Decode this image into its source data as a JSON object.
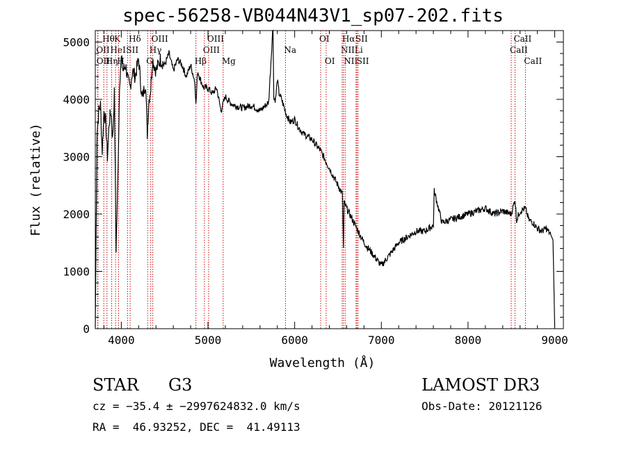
{
  "chart_data": {
    "type": "line",
    "title": "spec-56258-VB044N43V1_sp07-202.fits",
    "xlabel": "Wavelength (Å)",
    "ylabel": "Flux (relative)",
    "xlim": [
      3700,
      9100
    ],
    "ylim": [
      0,
      5200
    ],
    "x_ticks": [
      4000,
      5000,
      6000,
      7000,
      8000,
      9000
    ],
    "y_ticks": [
      0,
      1000,
      2000,
      3000,
      4000,
      5000
    ],
    "series": [
      {
        "x": [
          3700,
          3720,
          3740,
          3760,
          3780,
          3800,
          3820,
          3840,
          3860,
          3880,
          3900,
          3920,
          3940,
          3960,
          3980,
          4000,
          4020,
          4050,
          4080,
          4100,
          4130,
          4160,
          4200,
          4240,
          4280,
          4300,
          4320,
          4340,
          4360,
          4400,
          4450,
          4500,
          4550,
          4600,
          4650,
          4700,
          4750,
          4800,
          4850,
          4861,
          4880,
          4900,
          4950,
          5000,
          5050,
          5100,
          5150,
          5200,
          5250,
          5300,
          5400,
          5500,
          5600,
          5700,
          5750,
          5760,
          5780,
          5800,
          5820,
          5850,
          5890,
          5900,
          5950,
          6000,
          6050,
          6100,
          6150,
          6200,
          6250,
          6300,
          6350,
          6400,
          6450,
          6500,
          6550,
          6563,
          6570,
          6600,
          6650,
          6700,
          6750,
          6800,
          6850,
          6900,
          6950,
          7000,
          7050,
          7100,
          7150,
          7200,
          7300,
          7400,
          7500,
          7600,
          7610,
          7700,
          7800,
          7900,
          8000,
          8100,
          8200,
          8300,
          8400,
          8498,
          8542,
          8560,
          8600,
          8662,
          8700,
          8750,
          8800,
          8850,
          8900,
          8950,
          8980,
          9000
        ],
        "y": [
          20,
          3400,
          3800,
          3900,
          3100,
          3800,
          3600,
          3000,
          3600,
          3800,
          3300,
          4100,
          1400,
          2600,
          4300,
          4700,
          4500,
          4600,
          4300,
          4200,
          4500,
          4400,
          4700,
          4000,
          4300,
          3400,
          4000,
          4200,
          4700,
          4500,
          4700,
          4600,
          4800,
          4500,
          4700,
          4600,
          4400,
          4600,
          4300,
          3900,
          4500,
          4400,
          4200,
          4200,
          4100,
          4200,
          3800,
          4050,
          3950,
          3900,
          3850,
          3900,
          3800,
          3950,
          5300,
          4000,
          4000,
          4350,
          4100,
          4000,
          3800,
          3750,
          3600,
          3650,
          3500,
          3400,
          3350,
          3300,
          3200,
          3100,
          2950,
          2800,
          2650,
          2500,
          2350,
          1400,
          2200,
          2100,
          1950,
          1800,
          1650,
          1500,
          1400,
          1300,
          1200,
          1100,
          1200,
          1300,
          1400,
          1500,
          1600,
          1700,
          1700,
          1800,
          2400,
          1850,
          1900,
          1950,
          2000,
          2050,
          2100,
          2000,
          2050,
          2000,
          2250,
          1900,
          2050,
          2100,
          1900,
          1850,
          1750,
          1700,
          1750,
          1650,
          1550,
          30
        ]
      }
    ],
    "lines": [
      {
        "label": "OII",
        "x": 3727,
        "row": 2
      },
      {
        "label": "Hθ",
        "x": 3798,
        "row": 1
      },
      {
        "label": "OII",
        "x": 3730,
        "row": 3
      },
      {
        "label": "Hη",
        "x": 3835,
        "row": 3
      },
      {
        "label": "HeI",
        "x": 3889,
        "row": 2
      },
      {
        "label": "K",
        "x": 3934,
        "row": 1
      },
      {
        "label": "H",
        "x": 3968,
        "row": 3
      },
      {
        "label": "Hδ",
        "x": 4102,
        "row": 1
      },
      {
        "label": "SII",
        "x": 4072,
        "row": 2
      },
      {
        "label": "OIII",
        "x": 4363,
        "row": 1
      },
      {
        "label": "Hγ",
        "x": 4340,
        "row": 2
      },
      {
        "label": "G",
        "x": 4304,
        "row": 3
      },
      {
        "label": "Hβ",
        "x": 4861,
        "row": 3
      },
      {
        "label": "OIII",
        "x": 4959,
        "row": 2
      },
      {
        "label": "OIII",
        "x": 5007,
        "row": 1
      },
      {
        "label": "Mg",
        "x": 5175,
        "row": 3
      },
      {
        "label": "Na",
        "x": 5894,
        "row": 2
      },
      {
        "label": "OI",
        "x": 6300,
        "row": 1
      },
      {
        "label": "OI",
        "x": 6363,
        "row": 3
      },
      {
        "label": "NII",
        "x": 6548,
        "row": 2
      },
      {
        "label": "Hα",
        "x": 6563,
        "row": 1
      },
      {
        "label": "NII",
        "x": 6583,
        "row": 3
      },
      {
        "label": "Li",
        "x": 6708,
        "row": 2
      },
      {
        "label": "SII",
        "x": 6717,
        "row": 1
      },
      {
        "label": "SII",
        "x": 6731,
        "row": 3
      },
      {
        "label": "CaII",
        "x": 8498,
        "row": 2
      },
      {
        "label": "CaII",
        "x": 8542,
        "row": 1
      },
      {
        "label": "CaII",
        "x": 8662,
        "row": 3
      }
    ],
    "line_color": "#cc0000",
    "grid": false
  },
  "info": {
    "class": "STAR",
    "subclass": "G3",
    "cz": "cz = −35.4 ± −2997624832.0 km/s",
    "radec": "RA =  46.93252, DEC =  41.49113",
    "survey": "LAMOST DR3",
    "obsdate": "Obs-Date: 20121126"
  }
}
